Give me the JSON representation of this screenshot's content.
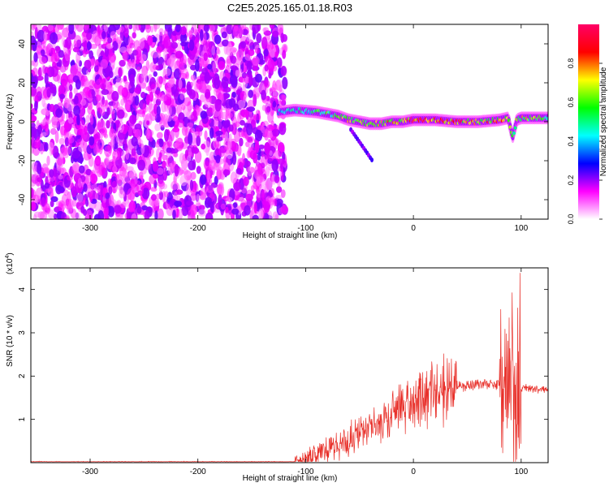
{
  "title": "C2E5.2025.165.01.18.R03",
  "chart_data": [
    {
      "type": "heatmap",
      "xlabel": "Height of straight line (km)",
      "ylabel": "Frequency (Hz)",
      "xlim": [
        -355,
        125
      ],
      "ylim": [
        -50,
        50
      ],
      "x_ticks": [
        -300,
        -200,
        -100,
        0,
        100
      ],
      "y_ticks": [
        -40,
        -20,
        0,
        20,
        40
      ],
      "colorbar": {
        "label": "Normalized spectral amplitude",
        "range": [
          0,
          1
        ],
        "ticks": [
          "0.0",
          "0.2",
          "0.4",
          "0.6",
          "0.8"
        ],
        "colors": [
          "#ffffff",
          "#ff00ff",
          "#0000ff",
          "#00ffff",
          "#00ff00",
          "#ffff00",
          "#ff0000",
          "#ff0066"
        ]
      },
      "noise_region_x_max": -125,
      "signal_ridge": {
        "x": [
          -125,
          -110,
          -90,
          -70,
          -60,
          -50,
          -40,
          -30,
          -20,
          -10,
          0,
          20,
          40,
          60,
          80,
          88,
          92,
          96,
          100,
          125
        ],
        "frequency": [
          5,
          6,
          5,
          3,
          1,
          0,
          -1,
          -1,
          0,
          0,
          1,
          1,
          0,
          0,
          1,
          2,
          -8,
          1,
          2,
          2
        ],
        "amplitude": [
          0.4,
          0.5,
          0.55,
          0.6,
          0.7,
          0.6,
          0.75,
          0.7,
          0.8,
          0.75,
          0.9,
          0.85,
          0.8,
          0.75,
          0.8,
          0.7,
          0.5,
          0.6,
          0.7,
          0.6
        ]
      }
    },
    {
      "type": "line",
      "xlabel": "Height of straight line (km)",
      "ylabel": "SNR (10 * v/v)",
      "y_multiplier": "(x10^4)",
      "y_multiplier_base": "(x10",
      "y_multiplier_exp": "4",
      "y_multiplier_close": ")",
      "xlim": [
        -355,
        125
      ],
      "ylim": [
        0,
        4.5
      ],
      "x_ticks": [
        -300,
        -200,
        -100,
        0,
        100
      ],
      "y_ticks": [
        1,
        2,
        3,
        4
      ],
      "series_color": "#e8302a",
      "envelope": {
        "x": [
          -355,
          -110,
          -100,
          -90,
          -80,
          -70,
          -60,
          -50,
          -40,
          -30,
          -20,
          -10,
          0,
          10,
          20,
          30,
          40,
          60,
          80,
          85,
          90,
          95,
          100,
          110,
          125
        ],
        "y": [
          0.02,
          0.02,
          0.05,
          0.2,
          0.3,
          0.4,
          0.5,
          0.65,
          0.8,
          0.95,
          1.1,
          1.3,
          1.45,
          1.55,
          1.65,
          1.72,
          1.75,
          1.8,
          1.82,
          1.85,
          1.5,
          1.2,
          1.75,
          1.7,
          1.7
        ]
      }
    }
  ]
}
